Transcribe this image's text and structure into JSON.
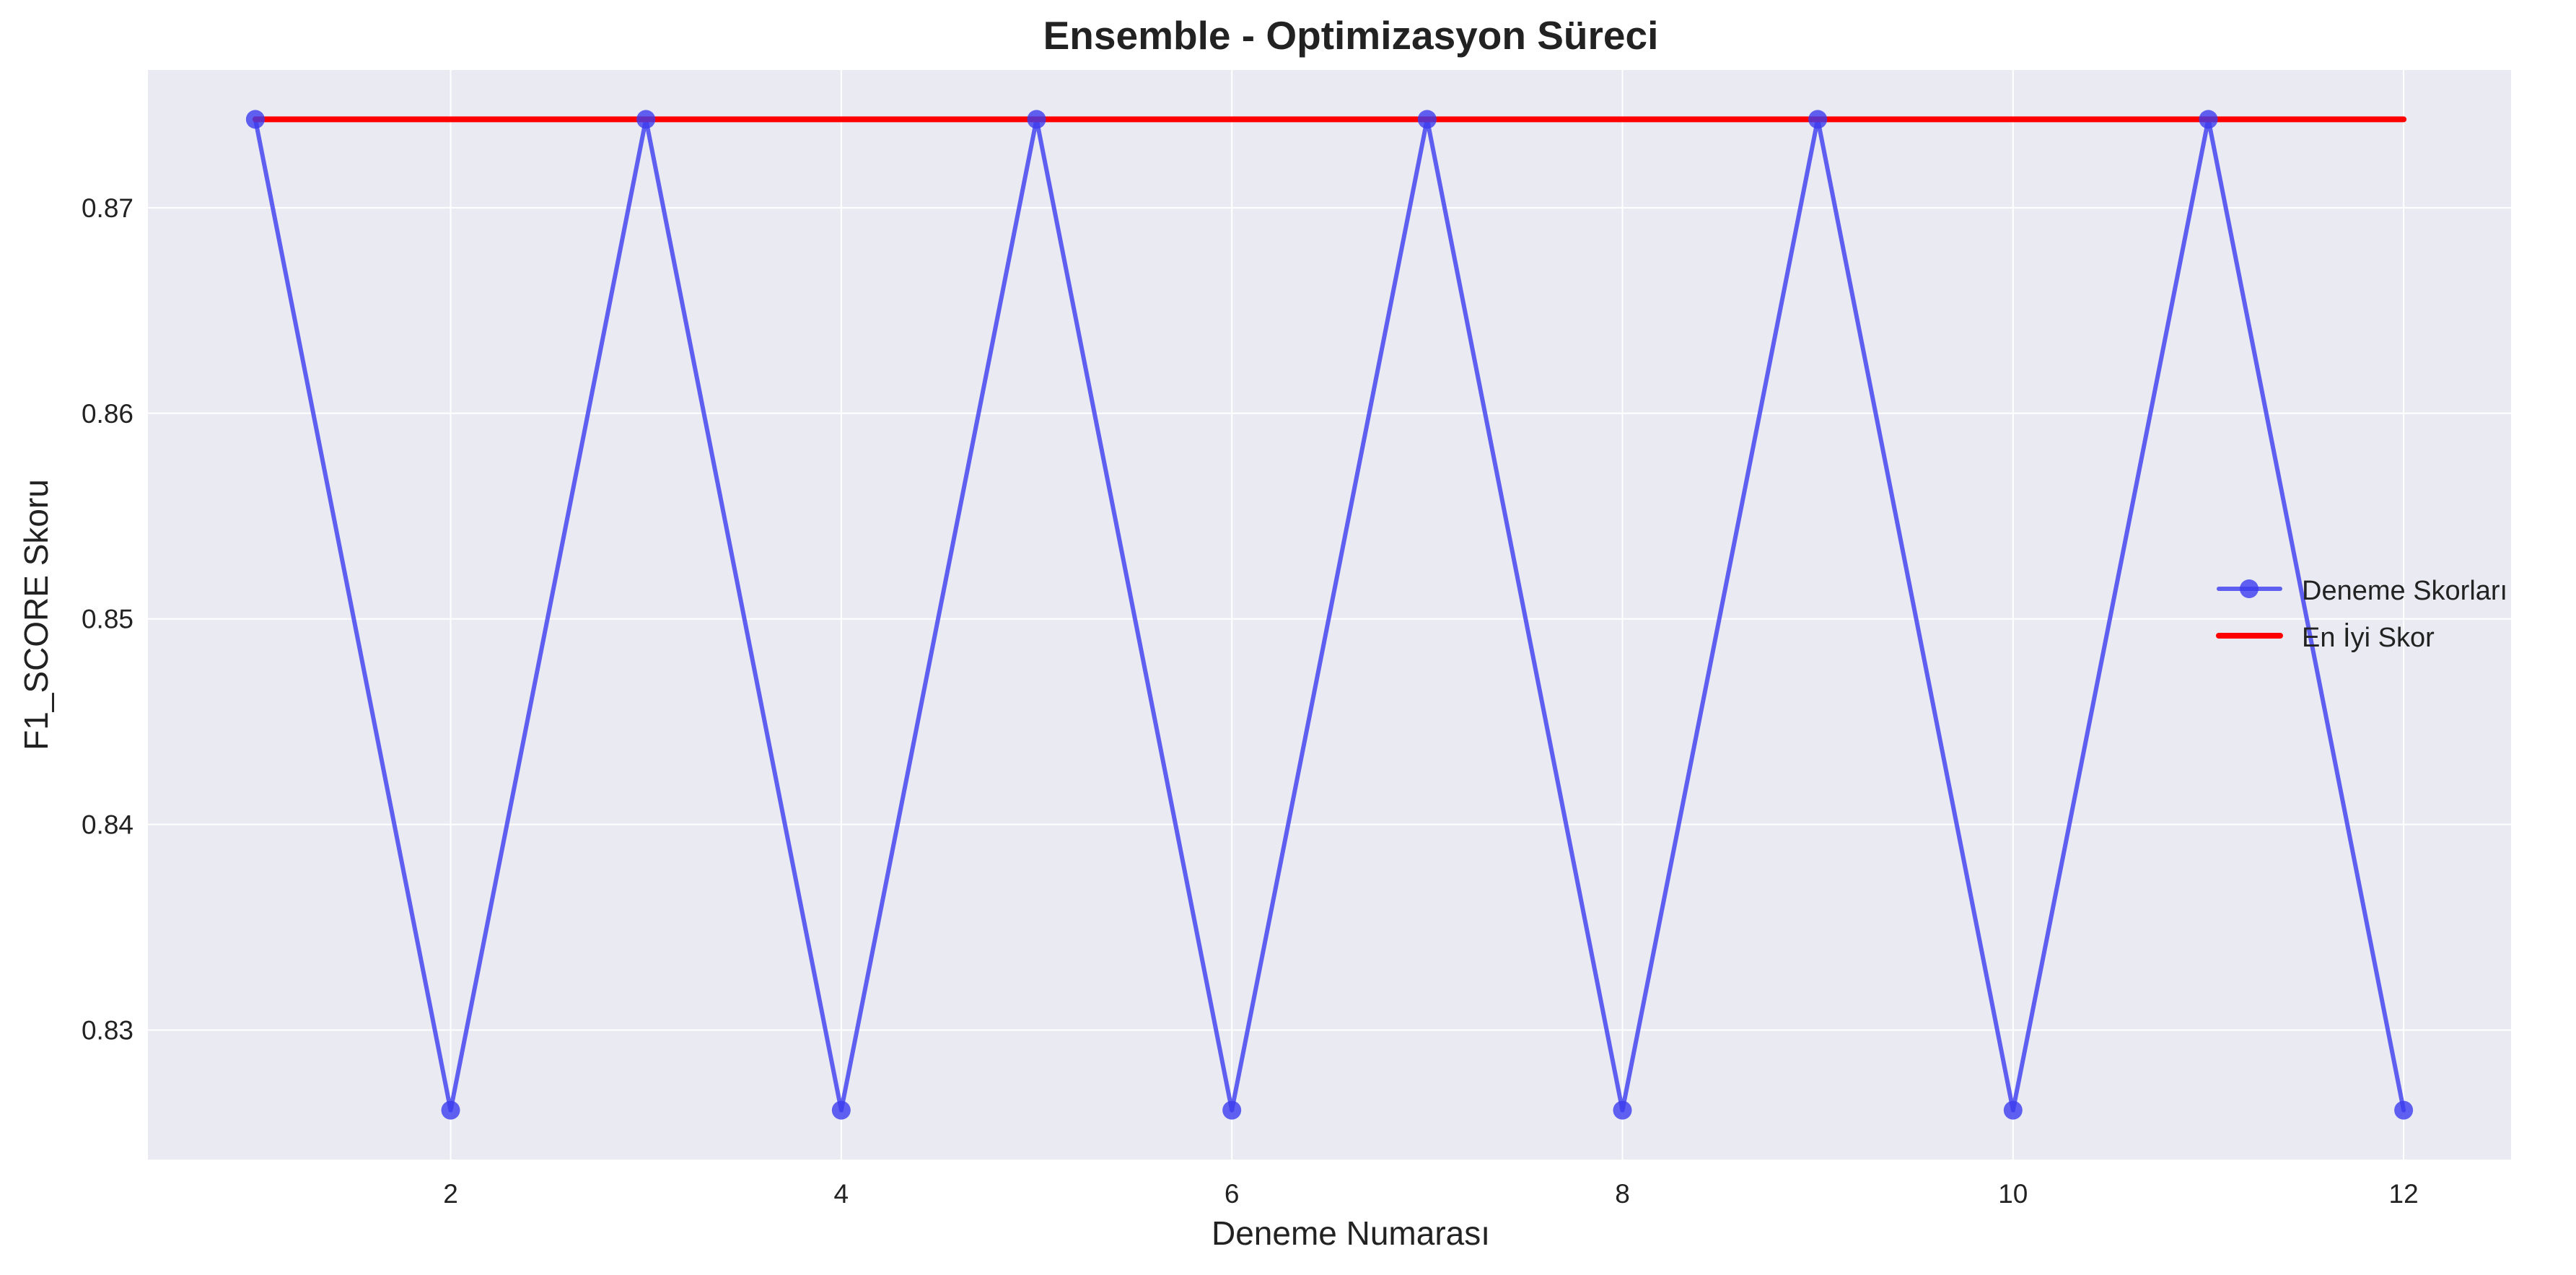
{
  "chart_data": {
    "type": "line",
    "title": "Ensemble - Optimizasyon Süreci",
    "xlabel": "Deneme Numarası",
    "ylabel": "F1_SCORE Skoru",
    "x": [
      1,
      2,
      3,
      4,
      5,
      6,
      7,
      8,
      9,
      10,
      11,
      12
    ],
    "xticks": [
      2,
      4,
      6,
      8,
      10,
      12
    ],
    "xtick_labels": [
      "2",
      "4",
      "6",
      "8",
      "10",
      "12"
    ],
    "yticks": [
      0.83,
      0.84,
      0.85,
      0.86,
      0.87
    ],
    "ytick_labels": [
      "0.83",
      "0.84",
      "0.85",
      "0.86",
      "0.87"
    ],
    "xlim": [
      0.45,
      12.55
    ],
    "ylim": [
      0.8237,
      0.8767
    ],
    "grid": true,
    "legend_position": "center-right",
    "series": [
      {
        "name": "Deneme Skorları",
        "kind": "line-marker",
        "color": "#3b3bef",
        "values": [
          0.8743,
          0.8261,
          0.8743,
          0.8261,
          0.8743,
          0.8261,
          0.8743,
          0.8261,
          0.8743,
          0.8261,
          0.8743,
          0.8261
        ]
      },
      {
        "name": "En İyi Skor",
        "kind": "line",
        "color": "#ff0000",
        "values": [
          0.8743,
          0.8743,
          0.8743,
          0.8743,
          0.8743,
          0.8743,
          0.8743,
          0.8743,
          0.8743,
          0.8743,
          0.8743,
          0.8743
        ]
      }
    ],
    "colors": {
      "plot_background": "#eaeaf2",
      "grid": "#ffffff"
    }
  }
}
